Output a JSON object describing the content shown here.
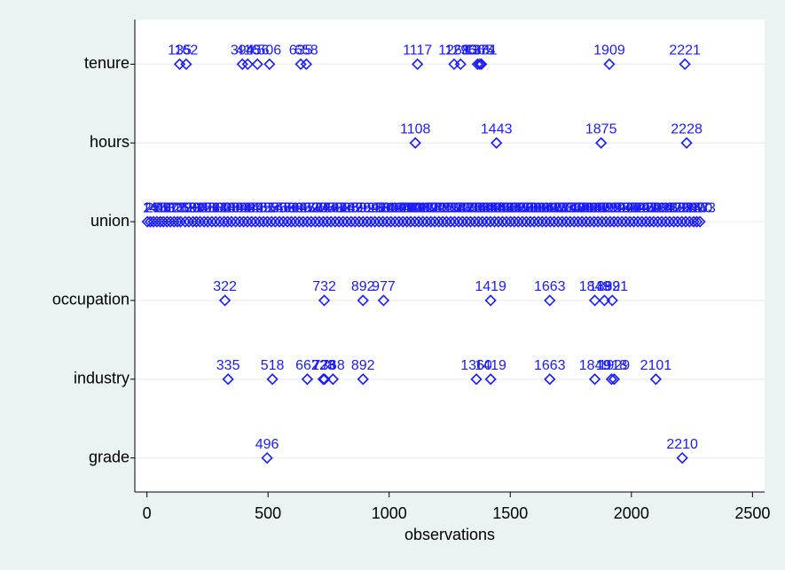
{
  "chart_data": {
    "type": "strip",
    "xlabel": "observations",
    "xlim": [
      -50,
      2550
    ],
    "xticks": [
      0,
      500,
      1000,
      1500,
      2000,
      2500
    ],
    "grid": true,
    "color": "#1a1aff",
    "series": [
      {
        "name": "tenure",
        "values": [
          135,
          162,
          394,
          416,
          456,
          506,
          635,
          658,
          1117,
          1268,
          1295,
          1365,
          1374,
          1381,
          1909,
          2221
        ]
      },
      {
        "name": "hours",
        "values": [
          1108,
          1443,
          1875,
          2228
        ]
      },
      {
        "name": "union",
        "values": [
          2,
          14,
          27,
          41,
          55,
          68,
          83,
          97,
          112,
          126,
          139,
          158,
          173,
          190,
          204,
          219,
          236,
          251,
          268,
          284,
          301,
          318,
          333,
          349,
          366,
          383,
          399,
          415,
          432,
          448,
          465,
          481,
          497,
          514,
          530,
          547,
          563,
          580,
          596,
          612,
          629,
          645,
          662,
          678,
          695,
          711,
          728,
          744,
          760,
          777,
          793,
          810,
          826,
          843,
          859,
          876,
          892,
          909,
          925,
          941,
          958,
          974,
          991,
          1007,
          1024,
          1040,
          1057,
          1073,
          1089,
          1106,
          1122,
          1139,
          1155,
          1172,
          1188,
          1205,
          1221,
          1237,
          1254,
          1270,
          1287,
          1303,
          1320,
          1336,
          1353,
          1369,
          1385,
          1402,
          1418,
          1435,
          1451,
          1468,
          1484,
          1501,
          1517,
          1533,
          1550,
          1566,
          1583,
          1599,
          1616,
          1632,
          1648,
          1665,
          1681,
          1698,
          1714,
          1731,
          1747,
          1764,
          1780,
          1796,
          1813,
          1829,
          1846,
          1862,
          1879,
          1895,
          1912,
          1928,
          1944,
          1961,
          1977,
          1994,
          2010,
          2027,
          2043,
          2060,
          2076,
          2092,
          2109,
          2125,
          2142,
          2158,
          2175,
          2191,
          2208,
          2224,
          2240,
          2257,
          2270,
          2283
        ]
      },
      {
        "name": "occupation",
        "values": [
          322,
          732,
          892,
          977,
          1419,
          1663,
          1849,
          1889,
          1921
        ]
      },
      {
        "name": "industry",
        "values": [
          335,
          518,
          662,
          728,
          733,
          768,
          892,
          1360,
          1419,
          1663,
          1849,
          1918,
          1929,
          2101
        ]
      },
      {
        "name": "grade",
        "values": [
          496,
          2210
        ]
      }
    ]
  }
}
